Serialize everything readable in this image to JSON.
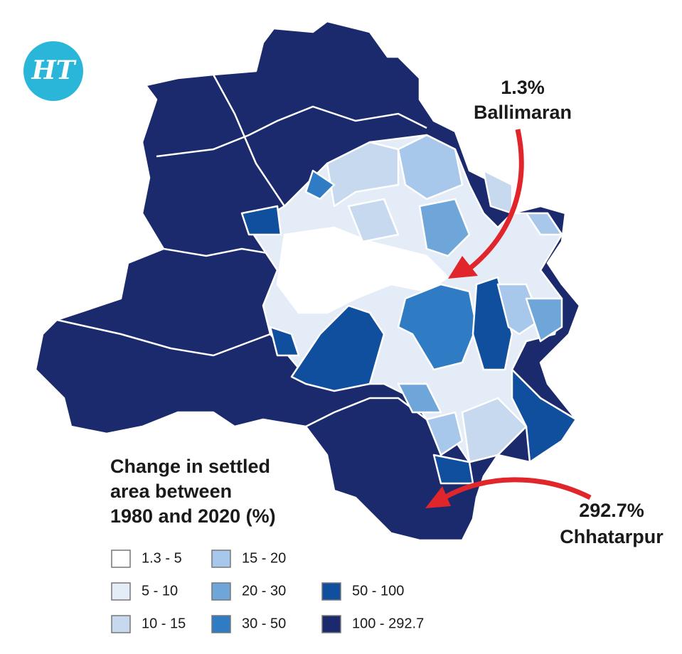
{
  "logo": "HT",
  "annotations": [
    {
      "value": "1.3%",
      "place": "Ballimaran"
    },
    {
      "value": "292.7%",
      "place": "Chhatarpur"
    }
  ],
  "legend": {
    "title": [
      "Change in settled",
      "area between",
      "1980 and 2020 (%)"
    ],
    "items": [
      {
        "label": "1.3 - 5",
        "color": "#ffffff"
      },
      {
        "label": "5 - 10",
        "color": "#e3ecf7"
      },
      {
        "label": "10 - 15",
        "color": "#c6d9ef"
      },
      {
        "label": "15 - 20",
        "color": "#a7c8ea"
      },
      {
        "label": "20 - 30",
        "color": "#6ea6da"
      },
      {
        "label": "30 - 50",
        "color": "#2f7cc5"
      },
      {
        "label": "50 - 100",
        "color": "#0f4f9e"
      },
      {
        "label": "100 - 292.7",
        "color": "#1a2a6c"
      }
    ]
  }
}
